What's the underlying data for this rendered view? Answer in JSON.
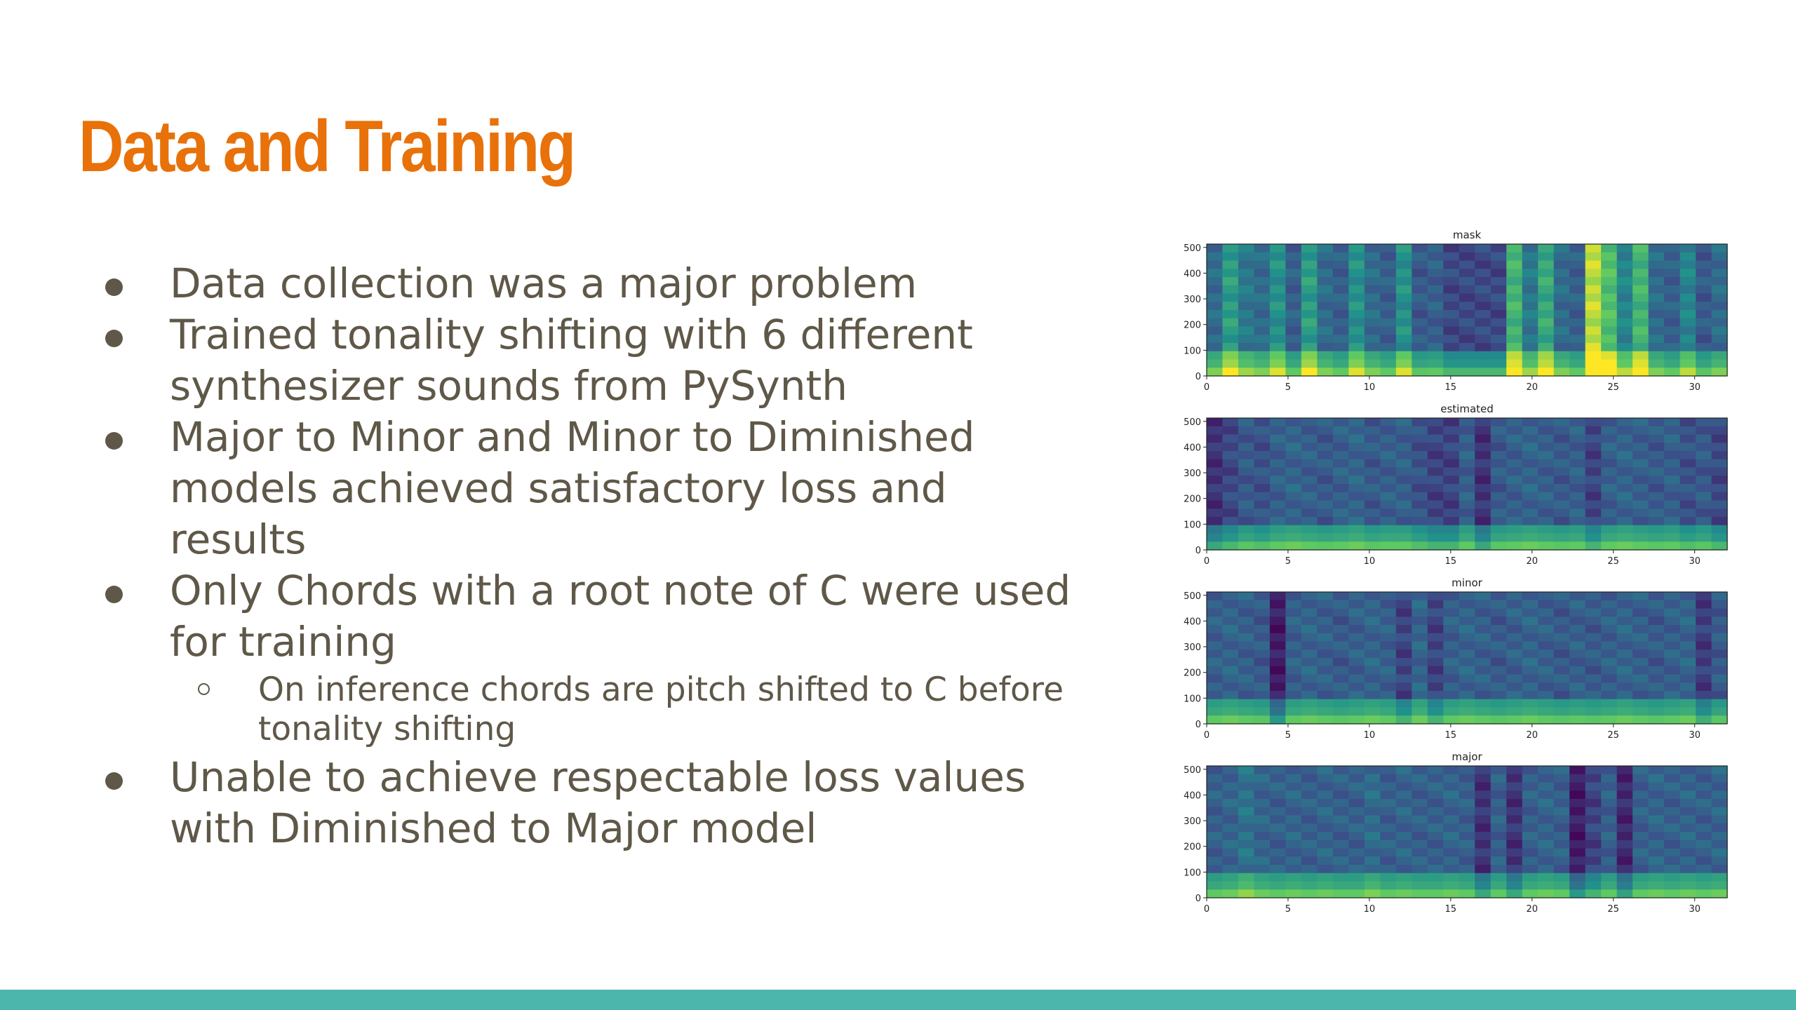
{
  "slide": {
    "title": "Data and Training",
    "accent_color": "#e8710a",
    "text_color": "#5f5848",
    "bar_color": "#4db6ac"
  },
  "bullets": [
    {
      "text": "Data collection was a major problem"
    },
    {
      "text": "Trained tonality shifting with 6 different synthesizer sounds from PySynth"
    },
    {
      "text": "Major to Minor and Minor to Diminished models achieved satisfactory loss and results"
    },
    {
      "text": "Only Chords with a root note of C were used for training",
      "sub": [
        {
          "text": "On inference chords are pitch shifted to C before tonality shifting"
        }
      ]
    },
    {
      "text": "Unable to achieve respectable loss values with Diminished to Major model"
    }
  ],
  "chart_data": [
    {
      "type": "heatmap",
      "title": "mask",
      "colormap": "viridis",
      "xlim": [
        0,
        32
      ],
      "ylim": [
        0,
        513
      ],
      "x_ticks": [
        "0",
        "5",
        "10",
        "15",
        "20",
        "25",
        "30"
      ],
      "y_ticks": [
        "0",
        "100",
        "200",
        "300",
        "400",
        "500"
      ],
      "column_intensity": [
        0.35,
        0.55,
        0.4,
        0.35,
        0.5,
        0.3,
        0.55,
        0.35,
        0.3,
        0.5,
        0.35,
        0.3,
        0.5,
        0.28,
        0.3,
        0.22,
        0.22,
        0.22,
        0.22,
        0.65,
        0.4,
        0.6,
        0.35,
        0.3,
        0.9,
        0.7,
        0.45,
        0.65,
        0.35,
        0.3,
        0.45,
        0.28,
        0.35
      ]
    },
    {
      "type": "heatmap",
      "title": "estimated",
      "colormap": "viridis",
      "xlim": [
        0,
        32
      ],
      "ylim": [
        0,
        513
      ],
      "x_ticks": [
        "0",
        "5",
        "10",
        "15",
        "20",
        "25",
        "30"
      ],
      "y_ticks": [
        "0",
        "100",
        "200",
        "300",
        "400",
        "500"
      ],
      "column_intensity": [
        0.15,
        0.22,
        0.28,
        0.25,
        0.3,
        0.32,
        0.3,
        0.28,
        0.3,
        0.32,
        0.28,
        0.3,
        0.3,
        0.25,
        0.2,
        0.2,
        0.3,
        0.15,
        0.28,
        0.3,
        0.32,
        0.3,
        0.28,
        0.3,
        0.2,
        0.3,
        0.32,
        0.3,
        0.28,
        0.3,
        0.25,
        0.28,
        0.22
      ]
    },
    {
      "type": "heatmap",
      "title": "minor",
      "colormap": "viridis",
      "xlim": [
        0,
        32
      ],
      "ylim": [
        0,
        513
      ],
      "x_ticks": [
        "0",
        "5",
        "10",
        "15",
        "20",
        "25",
        "30"
      ],
      "y_ticks": [
        "0",
        "100",
        "200",
        "300",
        "400",
        "500"
      ],
      "column_intensity": [
        0.3,
        0.32,
        0.3,
        0.28,
        0.08,
        0.3,
        0.32,
        0.3,
        0.28,
        0.3,
        0.32,
        0.3,
        0.2,
        0.32,
        0.2,
        0.3,
        0.32,
        0.3,
        0.28,
        0.3,
        0.32,
        0.3,
        0.28,
        0.3,
        0.28,
        0.3,
        0.32,
        0.3,
        0.28,
        0.3,
        0.32,
        0.18,
        0.28
      ]
    },
    {
      "type": "heatmap",
      "title": "major",
      "colormap": "viridis",
      "xlim": [
        0,
        32
      ],
      "ylim": [
        0,
        513
      ],
      "x_ticks": [
        "0",
        "5",
        "10",
        "15",
        "20",
        "25",
        "30"
      ],
      "y_ticks": [
        "0",
        "100",
        "200",
        "300",
        "400",
        "500"
      ],
      "column_intensity": [
        0.3,
        0.32,
        0.38,
        0.32,
        0.3,
        0.32,
        0.3,
        0.32,
        0.3,
        0.3,
        0.35,
        0.3,
        0.32,
        0.3,
        0.3,
        0.32,
        0.3,
        0.15,
        0.3,
        0.15,
        0.3,
        0.32,
        0.3,
        0.08,
        0.2,
        0.3,
        0.12,
        0.3,
        0.32,
        0.3,
        0.32,
        0.3,
        0.32
      ]
    }
  ]
}
